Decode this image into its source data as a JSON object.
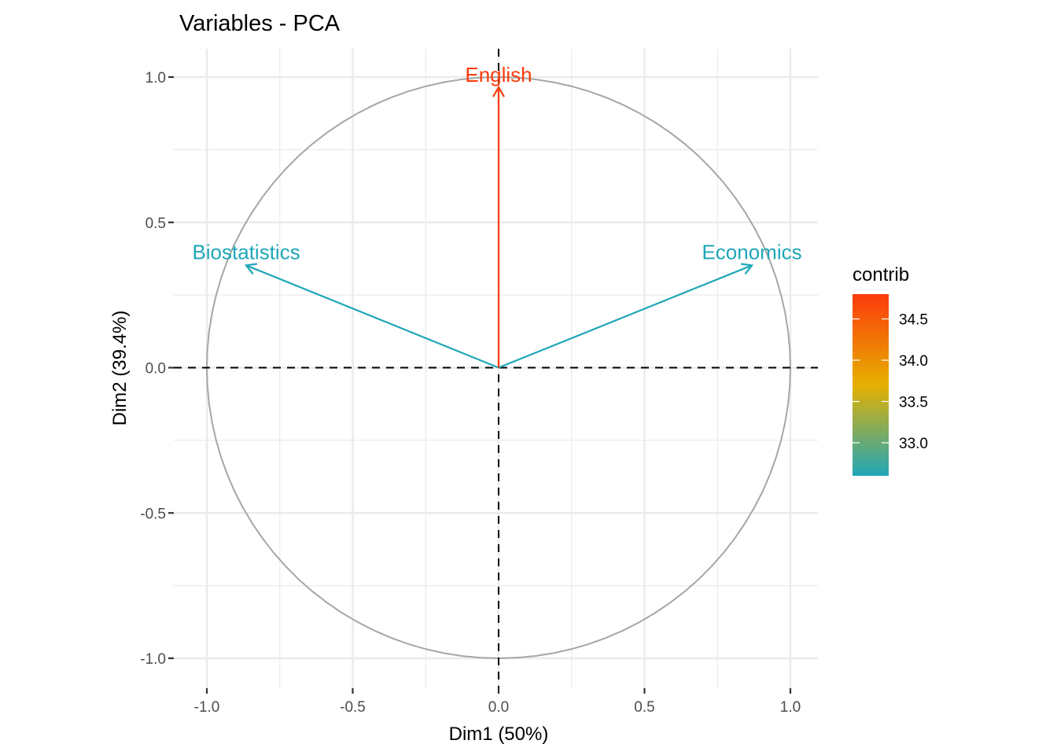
{
  "chart_data": {
    "type": "scatter",
    "subtype": "pca-variable-correlation-circle",
    "title": "Variables - PCA",
    "xlabel": "Dim1 (50%)",
    "ylabel": "Dim2 (39.4%)",
    "xlim": [
      -1.1,
      1.1
    ],
    "ylim": [
      -1.1,
      1.1
    ],
    "x_ticks": [
      -1.0,
      -0.5,
      0.0,
      0.5,
      1.0
    ],
    "x_tick_labels": [
      "-1.0",
      "-0.5",
      "0.0",
      "0.5",
      "1.0"
    ],
    "y_ticks": [
      -1.0,
      -0.5,
      0.0,
      0.5,
      1.0
    ],
    "y_tick_labels": [
      "-1.0",
      "-0.5",
      "0.0",
      "0.5",
      "1.0"
    ],
    "grid": true,
    "unit_circle": true,
    "reference_lines": {
      "x": 0,
      "y": 0,
      "style": "dashed"
    },
    "variables": [
      {
        "name": "Biostatistics",
        "x": -0.865,
        "y": 0.352,
        "contrib": 32.6
      },
      {
        "name": "Economics",
        "x": 0.868,
        "y": 0.352,
        "contrib": 32.6
      },
      {
        "name": "English",
        "x": 0.0,
        "y": 0.965,
        "contrib": 34.8
      }
    ],
    "legend": {
      "title": "contrib",
      "placement": "right",
      "type": "colorbar",
      "range": [
        32.6,
        34.8
      ],
      "ticks": [
        33.0,
        33.5,
        34.0,
        34.5
      ],
      "tick_labels": [
        "33.0",
        "33.5",
        "34.0",
        "34.5"
      ],
      "gradient_colors": [
        "#1fa7b8",
        "#e6b000",
        "#fc3b0c"
      ]
    },
    "colors": {
      "low": "#1fa7b8",
      "mid": "#e6b000",
      "high": "#fc3b0c",
      "circle": "#a6a6a6",
      "grid": "#ebebeb"
    }
  }
}
